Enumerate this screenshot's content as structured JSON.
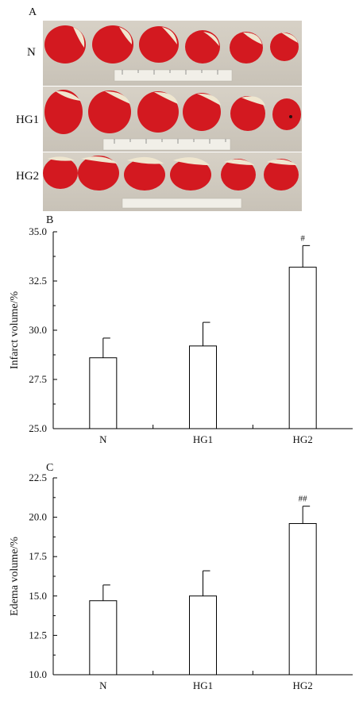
{
  "panels": {
    "a": "A",
    "b": "B",
    "c": "C"
  },
  "photo_rows": [
    "N",
    "HG1",
    "HG2"
  ],
  "colors": {
    "tissue": "#d31920",
    "tissue_dark": "#a50e16",
    "infarct": "#efe6cf",
    "background": "#d1cbc0",
    "ruler": "#f1efe8"
  },
  "chart_data": [
    {
      "type": "bar",
      "categories": [
        "N",
        "HG1",
        "HG2"
      ],
      "values": [
        28.6,
        29.2,
        33.2
      ],
      "errors": [
        1.0,
        1.2,
        1.1
      ],
      "annotations": [
        "",
        "",
        "#"
      ],
      "ylabel": "Infarct volume/%",
      "ylim": [
        25.0,
        35.0
      ],
      "yticks": [
        "25.0",
        "27.5",
        "30.0",
        "32.5",
        "35.0"
      ],
      "grid": false
    },
    {
      "type": "bar",
      "categories": [
        "N",
        "HG1",
        "HG2"
      ],
      "values": [
        14.7,
        15.0,
        19.6
      ],
      "errors": [
        1.0,
        1.6,
        1.1
      ],
      "annotations": [
        "",
        "",
        "##"
      ],
      "ylabel": "Edema volume/%",
      "ylim": [
        10.0,
        22.5
      ],
      "yticks": [
        "10.0",
        "12.5",
        "15.0",
        "17.5",
        "20.0",
        "22.5"
      ],
      "grid": false
    }
  ]
}
